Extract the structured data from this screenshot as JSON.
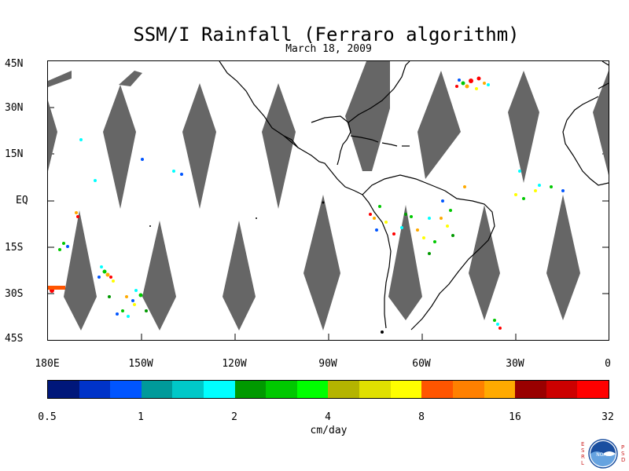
{
  "title": "SSM/I Rainfall (Ferraro algorithm)",
  "date": "March 18, 2009",
  "map": {
    "lat_labels": [
      "45N",
      "30N",
      "15N",
      "EQ",
      "15S",
      "30S",
      "45S"
    ],
    "lon_labels": [
      "180E",
      "150W",
      "120W",
      "90W",
      "60W",
      "30W",
      "0"
    ],
    "lon_range": [
      -180,
      0
    ],
    "lat_range": [
      -45,
      45
    ],
    "swath_color": "#666666",
    "coast_color": "#000000"
  },
  "colorbar": {
    "colors": [
      "#00177a",
      "#0033c8",
      "#0055ff",
      "#009a9a",
      "#00c8c8",
      "#00ffff",
      "#009900",
      "#00c800",
      "#00ff00",
      "#b4b400",
      "#e0e000",
      "#ffff00",
      "#ff5500",
      "#ff8000",
      "#ffaa00",
      "#990000",
      "#cc0000",
      "#ff0000"
    ],
    "ticks": [
      "0.5",
      "1",
      "2",
      "4",
      "8",
      "16",
      "32"
    ],
    "units": "cm/day"
  },
  "logo": {
    "left_text": "ESRL",
    "right_text": "PSD",
    "center_text": "NOAA"
  }
}
